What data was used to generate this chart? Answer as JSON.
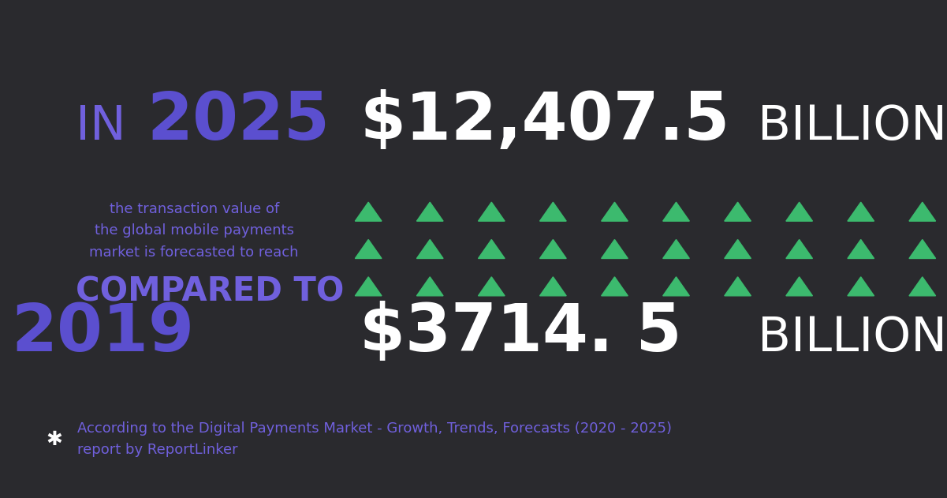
{
  "background_color": "#2a2a2e",
  "title_prefix": "IN ",
  "title_year": "2025",
  "value_2025": "$12,407.5",
  "billion_2025": " BILLION",
  "description": "the transaction value of\nthe global mobile payments\nmarket is forecasted to reach",
  "compared_to": "COMPARED TO",
  "year_2019": "2019",
  "value_2019": "$3714. 5",
  "billion_2019": " BILLION",
  "triangle_color": "#3cba6e",
  "purple_color": "#5b4fcf",
  "white_color": "#ffffff",
  "light_purple": "#7060dd",
  "footnote_symbol": "✱",
  "footnote_text": "According to the Digital Payments Market - Growth, Trends, Forecasts (2020 - 2025)\nreport by ReportLinker",
  "footnote_color": "#7060dd",
  "fig_width": 12.01,
  "fig_height": 6.31,
  "dpi": 100
}
